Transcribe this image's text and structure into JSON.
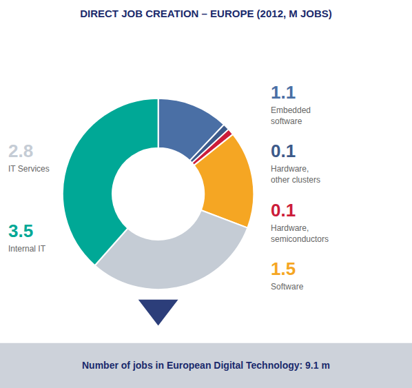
{
  "chart_data": {
    "type": "pie",
    "title": "DIRECT JOB CREATION – EUROPE (2012, M JOBS)",
    "categories": [
      "Embedded\nsoftware",
      "Hardware,\nother clusters",
      "Hardware,\nsemiconductors",
      "Software",
      "IT Services",
      "Internal IT"
    ],
    "values": [
      1.1,
      0.1,
      0.1,
      1.5,
      2.8,
      3.5
    ],
    "colors": [
      "#4a6fa5",
      "#3d5a8a",
      "#cc1c3a",
      "#f5a623",
      "#c5ccd5",
      "#00a896"
    ],
    "data_labels": true,
    "annotations": [
      "Number of jobs in European Digital Technology: 9.1 m"
    ]
  }
}
